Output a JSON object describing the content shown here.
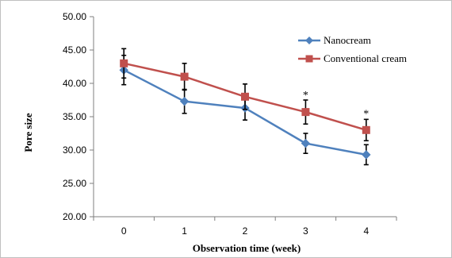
{
  "chart_data": {
    "type": "line",
    "xlabel": "Observation time (week)",
    "ylabel": "Pore size",
    "x": [
      "0",
      "1",
      "2",
      "3",
      "4"
    ],
    "ylim": [
      20,
      50
    ],
    "yticks": [
      "20.00",
      "25.00",
      "30.00",
      "35.00",
      "40.00",
      "45.00",
      "50.00"
    ],
    "legend_position": "top-right",
    "grid": false,
    "series": [
      {
        "name": "Nanocream",
        "color": "#4f81bd",
        "marker": "diamond",
        "values": [
          42.0,
          37.3,
          36.3,
          31.0,
          29.3
        ],
        "errors": [
          2.2,
          1.8,
          1.8,
          1.5,
          1.5
        ]
      },
      {
        "name": "Conventional cream",
        "color": "#c0504d",
        "marker": "square",
        "values": [
          43.0,
          41.0,
          38.0,
          35.7,
          33.0
        ],
        "errors": [
          2.2,
          2.0,
          1.9,
          1.8,
          1.6
        ]
      }
    ],
    "annotations": [
      {
        "x": "3",
        "y": 37.5,
        "text": "*"
      },
      {
        "x": "4",
        "y": 34.7,
        "text": "*"
      }
    ]
  }
}
